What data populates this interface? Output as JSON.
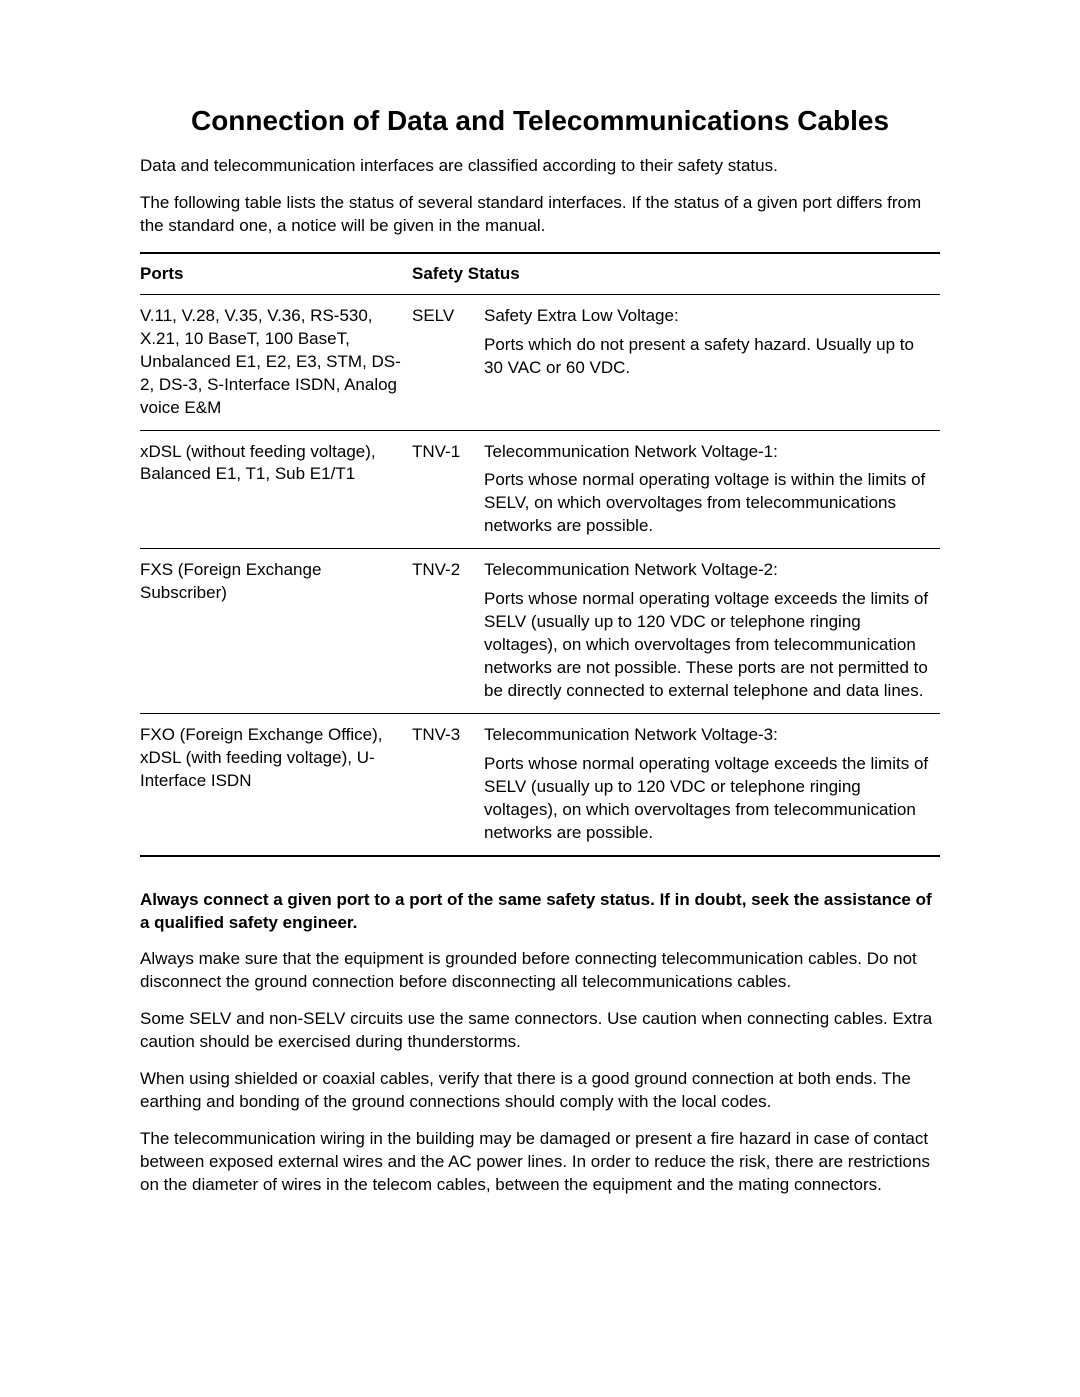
{
  "title": "Connection of Data and Telecommunications Cables",
  "intro1": "Data and telecommunication interfaces are classified according to their safety status.",
  "intro2": "The following table lists the status of several standard interfaces. If the status of a given port differs from the standard one, a notice will be given in the manual.",
  "table": {
    "header_ports": "Ports",
    "header_status": "Safety Status",
    "rows": [
      {
        "ports": "V.11, V.28, V.35, V.36, RS-530, X.21, 10 BaseT, 100 BaseT, Unbalanced E1, E2, E3, STM, DS-2, DS-3, S-Interface ISDN, Analog voice E&M",
        "code": "SELV",
        "desc_title": "Safety Extra Low Voltage:",
        "desc_body": "Ports which do not present a safety hazard. Usually up to 30 VAC or 60 VDC."
      },
      {
        "ports": "xDSL (without feeding voltage), Balanced E1, T1, Sub E1/T1",
        "code": "TNV-1",
        "desc_title": "Telecommunication Network Voltage-1:",
        "desc_body": "Ports whose normal operating voltage is within the limits of SELV, on which overvoltages from telecommunications networks are possible."
      },
      {
        "ports": "FXS (Foreign Exchange Subscriber)",
        "code": "TNV-2",
        "desc_title": "Telecommunication Network Voltage-2:",
        "desc_body": "Ports whose normal operating voltage exceeds the limits of SELV (usually up to 120 VDC or telephone ringing voltages), on which overvoltages from telecommunication networks are not possible. These ports are not permitted to be directly connected to external telephone and data lines."
      },
      {
        "ports": "FXO (Foreign Exchange Office), xDSL (with feeding voltage), U-Interface ISDN",
        "code": "TNV-3",
        "desc_title": "Telecommunication Network Voltage-3:",
        "desc_body": "Ports whose normal operating voltage exceeds the limits of SELV (usually up to 120 VDC or telephone ringing voltages), on which overvoltages from telecommunication networks are possible."
      }
    ]
  },
  "warn_bold": "Always connect a given port to a port of the same safety status. If in doubt, seek the assistance of a qualified safety engineer.",
  "para1": "Always make sure that the equipment is grounded before connecting telecommunication cables. Do not disconnect the ground connection before disconnecting all telecommunications cables.",
  "para2": "Some SELV and non-SELV circuits use the same connectors. Use caution when connecting cables. Extra caution should be exercised during thunderstorms.",
  "para3": "When using shielded or coaxial cables, verify that there is a good ground connection at both ends. The earthing and bonding of the ground connections should comply with the local codes.",
  "para4": "The telecommunication wiring in the building may be damaged or present a fire hazard in case of contact between exposed external wires and the AC power lines. In order to reduce the risk, there are restrictions on the diameter of wires in the telecom cables, between the equipment and the mating connectors."
}
